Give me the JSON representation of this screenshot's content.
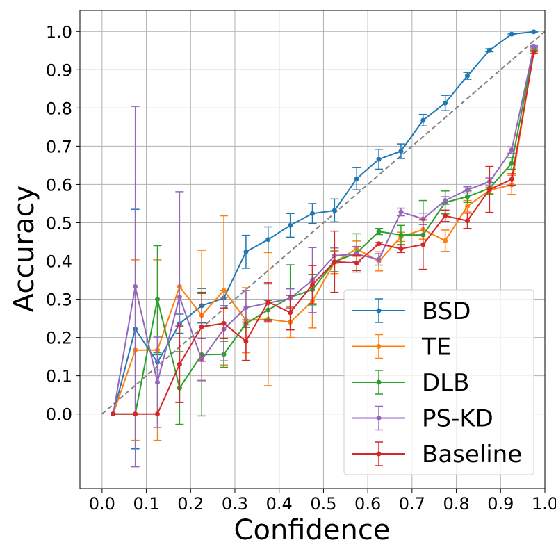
{
  "chart_data": {
    "type": "line",
    "title": "",
    "xlabel": "Confidence",
    "ylabel": "Accuracy",
    "xlim": [
      -0.05,
      1.0
    ],
    "ylim": [
      -0.195,
      1.055
    ],
    "xticks": [
      0.0,
      0.1,
      0.2,
      0.3,
      0.4,
      0.5,
      0.6,
      0.7,
      0.8,
      0.9,
      1.0
    ],
    "xtick_labels": [
      "0.0",
      "0.1",
      "0.2",
      "0.3",
      "0.4",
      "0.5",
      "0.6",
      "0.7",
      "0.8",
      "0.9",
      "1.0"
    ],
    "yticks": [
      0.0,
      0.1,
      0.2,
      0.3,
      0.4,
      0.5,
      0.6,
      0.7,
      0.8,
      0.9,
      1.0
    ],
    "ytick_labels": [
      "0.0",
      "0.1",
      "0.2",
      "0.3",
      "0.4",
      "0.5",
      "0.6",
      "0.7",
      "0.8",
      "0.9",
      "1.0"
    ],
    "grid": true,
    "legend_position": "bottom-right",
    "reference_line": {
      "style": "dashed",
      "color": "#808080",
      "from": [
        0.0,
        0.0
      ],
      "to": [
        1.0,
        1.0
      ]
    },
    "x": [
      0.025,
      0.075,
      0.125,
      0.175,
      0.225,
      0.275,
      0.325,
      0.375,
      0.425,
      0.475,
      0.525,
      0.575,
      0.625,
      0.675,
      0.725,
      0.775,
      0.825,
      0.875,
      0.925,
      0.975
    ],
    "series": [
      {
        "name": "BSD",
        "color": "#1f77b4",
        "values": [
          0.0,
          0.222,
          0.135,
          0.236,
          0.283,
          0.303,
          0.424,
          0.456,
          0.493,
          0.524,
          0.532,
          0.615,
          0.666,
          0.687,
          0.768,
          0.813,
          0.884,
          0.951,
          0.993,
          0.999
        ],
        "errors": [
          0.0,
          0.313,
          0.02,
          0.025,
          0.045,
          0.02,
          0.043,
          0.033,
          0.031,
          0.026,
          0.03,
          0.029,
          0.026,
          0.019,
          0.015,
          0.02,
          0.009,
          0.004,
          0.002,
          0.0005
        ]
      },
      {
        "name": "TE",
        "color": "#ff7f0e",
        "values": [
          0.0,
          0.167,
          0.167,
          0.333,
          0.258,
          0.323,
          0.245,
          0.248,
          0.24,
          0.295,
          0.397,
          0.432,
          0.399,
          0.463,
          0.482,
          0.453,
          0.543,
          0.585,
          0.599,
          0.948
        ],
        "errors": [
          0.0,
          0.236,
          0.236,
          0.0,
          0.17,
          0.195,
          0.085,
          0.174,
          0.04,
          0.07,
          0.03,
          0.02,
          0.025,
          0.012,
          0.025,
          0.028,
          0.015,
          0.008,
          0.025,
          0.005
        ]
      },
      {
        "name": "DLB",
        "color": "#2ca02c",
        "values": [
          0.0,
          0.0,
          0.3,
          0.068,
          0.155,
          0.156,
          0.236,
          0.272,
          0.305,
          0.325,
          0.398,
          0.421,
          0.477,
          0.468,
          0.468,
          0.553,
          0.568,
          0.59,
          0.655,
          0.955
        ],
        "errors": [
          0.0,
          0.0,
          0.14,
          0.095,
          0.16,
          0.034,
          0.01,
          0.025,
          0.085,
          0.04,
          0.026,
          0.05,
          0.008,
          0.025,
          0.09,
          0.03,
          0.015,
          0.015,
          0.015,
          0.005
        ]
      },
      {
        "name": "PS-KD",
        "color": "#9467bd",
        "values": [
          0.0,
          0.333,
          0.083,
          0.306,
          0.142,
          0.222,
          0.278,
          0.29,
          0.302,
          0.35,
          0.414,
          0.418,
          0.404,
          0.528,
          0.51,
          0.558,
          0.586,
          0.607,
          0.69,
          0.96
        ],
        "errors": [
          0.0,
          0.471,
          0.118,
          0.275,
          0.055,
          0.083,
          0.045,
          0.05,
          0.025,
          0.085,
          0.02,
          0.02,
          0.015,
          0.01,
          0.015,
          0.01,
          0.008,
          0.01,
          0.008,
          0.003
        ]
      },
      {
        "name": "Baseline",
        "color": "#d62728",
        "values": [
          0.0,
          0.0,
          0.0,
          0.13,
          0.228,
          0.237,
          0.19,
          0.293,
          0.265,
          0.338,
          0.398,
          0.395,
          0.445,
          0.432,
          0.443,
          0.518,
          0.505,
          0.587,
          0.613,
          0.945
        ],
        "errors": [
          0.0,
          0.0,
          0.0,
          0.1,
          0.09,
          0.04,
          0.05,
          0.05,
          0.045,
          0.05,
          0.08,
          0.02,
          0.003,
          0.01,
          0.065,
          0.015,
          0.02,
          0.06,
          0.015,
          0.003
        ]
      }
    ]
  }
}
